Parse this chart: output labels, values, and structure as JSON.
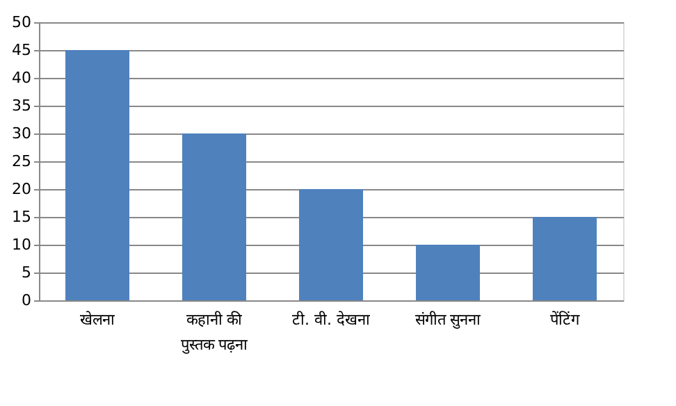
{
  "chart_data": {
    "type": "bar",
    "categories": [
      "खेलना",
      "कहानी की पुस्तक पढ़ना",
      "टी. वी. देखना",
      "संगीत सुनना",
      "पेंटिंग"
    ],
    "values": [
      45,
      30,
      20,
      10,
      15
    ],
    "color": "#4f81bd",
    "ylim": [
      0,
      50
    ],
    "yticks": [
      0,
      5,
      10,
      15,
      20,
      25,
      30,
      35,
      40,
      45,
      50
    ],
    "grid": "y"
  }
}
